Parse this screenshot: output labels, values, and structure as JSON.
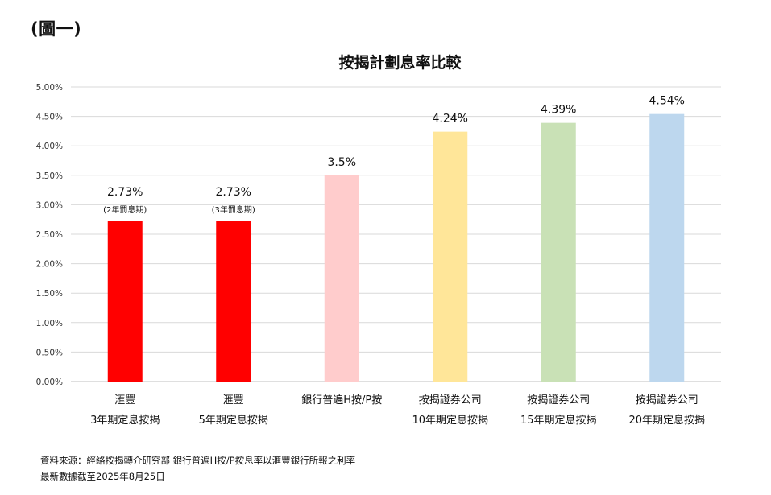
{
  "figure_label": "(圖一)",
  "chart_data": {
    "type": "bar",
    "title": "按揭計劃息率比較",
    "xlabel": "",
    "ylabel": "",
    "ylim": [
      0,
      5
    ],
    "yticks": [
      "0.00%",
      "0.50%",
      "1.00%",
      "1.50%",
      "2.00%",
      "2.50%",
      "3.00%",
      "3.50%",
      "4.00%",
      "4.50%",
      "5.00%"
    ],
    "ytick_values": [
      0,
      0.5,
      1,
      1.5,
      2,
      2.5,
      3,
      3.5,
      4,
      4.5,
      5
    ],
    "grid": true,
    "legend": "none",
    "categories": [
      [
        "滙豐",
        "3年期定息按揭"
      ],
      [
        "滙豐",
        "5年期定息按揭"
      ],
      [
        "銀行普遍H按/P按"
      ],
      [
        "按揭證券公司",
        "10年期定息按揭"
      ],
      [
        "按揭證券公司",
        "15年期定息按揭"
      ],
      [
        "按揭證券公司",
        "20年期定息按揭"
      ]
    ],
    "values": [
      2.73,
      2.73,
      3.5,
      4.24,
      4.39,
      4.54
    ],
    "value_labels": [
      "2.73%",
      "2.73%",
      "3.5%",
      "4.24%",
      "4.39%",
      "4.54%"
    ],
    "sub_labels": [
      "(2年罰息期)",
      "(3年罰息期)",
      "",
      "",
      "",
      ""
    ],
    "colors": [
      "#ff0000",
      "#ff0000",
      "#ffcccc",
      "#ffe699",
      "#c9e1b6",
      "#bdd7ee"
    ]
  },
  "source": {
    "line1": "資料來源：經絡按揭轉介研究部 銀行普遍H按/P按息率以滙豐銀行所報之利率",
    "line2": "最新數據截至2025年8月25日"
  }
}
